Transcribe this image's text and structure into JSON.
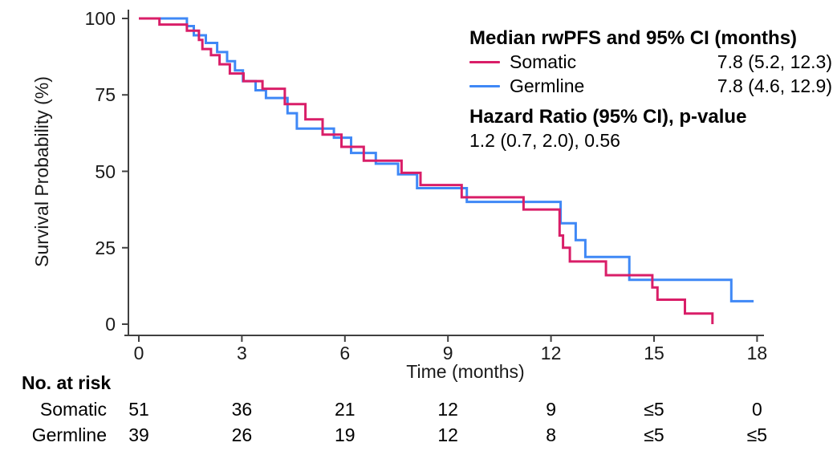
{
  "chart_data": {
    "type": "line",
    "subtype": "kaplan-meier-step-curve",
    "title": "",
    "xlabel": "Time (months)",
    "ylabel": "Survival Probability (%)",
    "xlim": [
      0,
      18
    ],
    "ylim": [
      0,
      100
    ],
    "x_ticks": [
      0,
      3,
      6,
      9,
      12,
      15,
      18
    ],
    "y_ticks": [
      100,
      75,
      50,
      25,
      0
    ],
    "grid": false,
    "legend_position": "top-right",
    "series": [
      {
        "name": "Somatic",
        "color": "#D91E68",
        "steps": [
          [
            0,
            100
          ],
          [
            0.6,
            98
          ],
          [
            1.4,
            96
          ],
          [
            1.75,
            93
          ],
          [
            1.85,
            90
          ],
          [
            2.1,
            88
          ],
          [
            2.35,
            85
          ],
          [
            2.65,
            82
          ],
          [
            3.05,
            79.5
          ],
          [
            3.6,
            77
          ],
          [
            4.25,
            72
          ],
          [
            4.85,
            67
          ],
          [
            5.35,
            62
          ],
          [
            5.9,
            58
          ],
          [
            6.55,
            53.5
          ],
          [
            7.65,
            49.5
          ],
          [
            8.2,
            45.5
          ],
          [
            9.4,
            41.5
          ],
          [
            11.2,
            37.5
          ],
          [
            12.25,
            29
          ],
          [
            12.35,
            25
          ],
          [
            12.55,
            20.5
          ],
          [
            13.6,
            16
          ],
          [
            14.95,
            12
          ],
          [
            15.1,
            8
          ],
          [
            15.9,
            3.5
          ],
          [
            16.7,
            0
          ]
        ]
      },
      {
        "name": "Germline",
        "color": "#3F88F6",
        "steps": [
          [
            0,
            100
          ],
          [
            1.4,
            97.5
          ],
          [
            1.6,
            94.5
          ],
          [
            1.95,
            92
          ],
          [
            2.28,
            89
          ],
          [
            2.57,
            86
          ],
          [
            2.8,
            83
          ],
          [
            3.03,
            79.5
          ],
          [
            3.4,
            76.5
          ],
          [
            3.7,
            74
          ],
          [
            4.33,
            69
          ],
          [
            4.6,
            64
          ],
          [
            5.68,
            61
          ],
          [
            6.18,
            56
          ],
          [
            6.9,
            52.5
          ],
          [
            7.55,
            49
          ],
          [
            8.1,
            44.5
          ],
          [
            9.55,
            40
          ],
          [
            12.28,
            33
          ],
          [
            12.72,
            27.5
          ],
          [
            13.0,
            22
          ],
          [
            14.28,
            14.5
          ],
          [
            17.25,
            7.5
          ],
          [
            17.9,
            7.5
          ]
        ]
      }
    ],
    "legend": {
      "title": "Median rwPFS and 95% CI (months)",
      "entries": [
        {
          "label": "Somatic",
          "median_ci": "7.8 (5.2, 12.3)"
        },
        {
          "label": "Germline",
          "median_ci": "7.8 (4.6, 12.9)"
        }
      ]
    },
    "annotations": {
      "hazard_title": "Hazard Ratio (95% CI), p-value",
      "hazard_value": "1.2 (0.7, 2.0), 0.56"
    },
    "risk_table": {
      "header": "No. at risk",
      "time_points": [
        0,
        3,
        6,
        9,
        12,
        15,
        18
      ],
      "rows": [
        {
          "label": "Somatic",
          "values": [
            "51",
            "36",
            "21",
            "12",
            "9",
            "≤5",
            "0"
          ]
        },
        {
          "label": "Germline",
          "values": [
            "39",
            "26",
            "19",
            "12",
            "8",
            "≤5",
            "≤5"
          ]
        }
      ]
    },
    "colors": {
      "somatic": "#D91E68",
      "germline": "#3F88F6",
      "axis": "#404040",
      "text": "#000000",
      "background": "#FFFFFF"
    }
  }
}
